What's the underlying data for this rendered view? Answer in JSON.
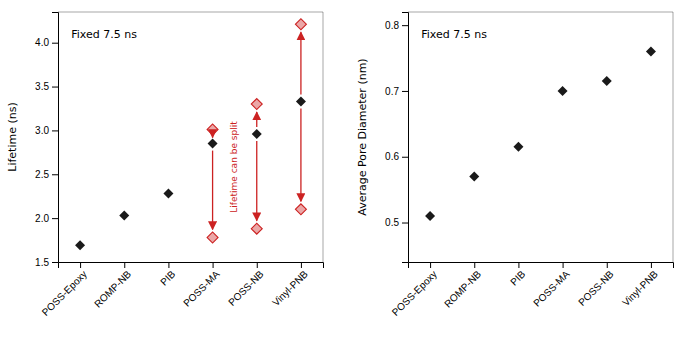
{
  "chart_data": [
    {
      "type": "scatter",
      "title": "Fixed 7.5 ns",
      "ylabel": "Lifetime (ns)",
      "categories": [
        "POSS-Epoxy",
        "ROMP-NB",
        "PIB",
        "POSS-MA",
        "POSS-NB",
        "Vinyl-PNB"
      ],
      "ylim": [
        1.5,
        4.35
      ],
      "yticks": [
        1.5,
        {
          "value": 2.0,
          "label": "2.0"
        },
        2.5,
        {
          "value": 3.0,
          "label": "3.0"
        },
        3.5,
        {
          "value": 4.0,
          "label": "4.0"
        }
      ],
      "grid": false,
      "series": [
        {
          "color": "#1a1a1a",
          "marker": "diamond",
          "values": [
            1.69,
            2.03,
            2.28,
            2.85,
            2.96,
            3.33
          ]
        },
        {
          "color": "#cc2222",
          "marker": "diamond",
          "values": [
            null,
            null,
            null,
            3.01,
            3.3,
            4.21
          ]
        },
        {
          "color": "#cc2222",
          "marker": "diamond",
          "values": [
            null,
            null,
            null,
            1.78,
            1.88,
            2.1
          ]
        }
      ],
      "annotation": "Lifetime can be split"
    },
    {
      "type": "scatter",
      "title": "Fixed 7.5 ns",
      "ylabel": "Average Pore Diameter (nm)",
      "categories": [
        "POSS-Epoxy",
        "ROMP-NB",
        "PIB",
        "POSS-MA",
        "POSS-NB",
        "Vinyl-PNB"
      ],
      "ylim": [
        0.44,
        0.82
      ],
      "yticks": [
        0.5,
        0.6,
        0.7,
        0.8
      ],
      "grid": false,
      "series": [
        {
          "color": "#1a1a1a",
          "marker": "diamond",
          "values": [
            0.51,
            0.57,
            0.615,
            0.7,
            0.715,
            0.76
          ]
        }
      ]
    }
  ]
}
